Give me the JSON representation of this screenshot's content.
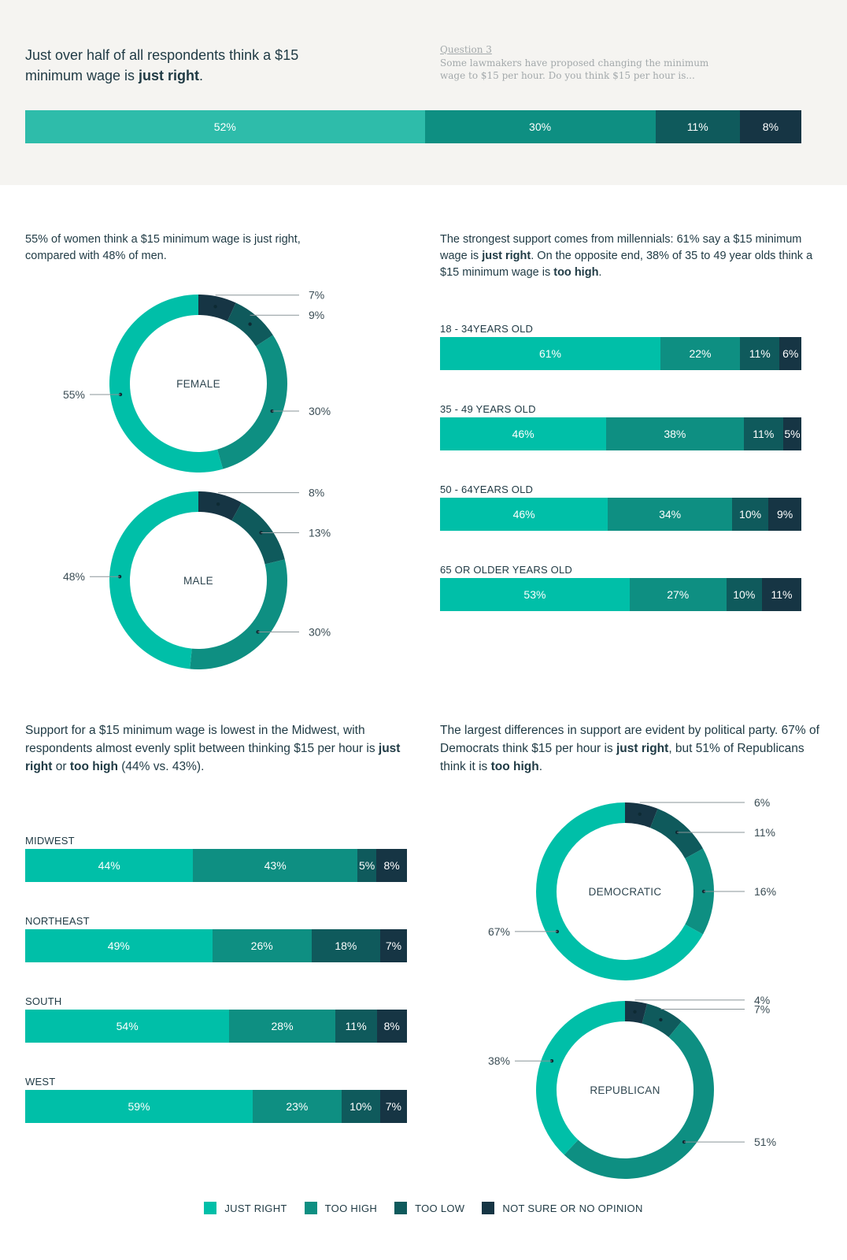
{
  "colors": {
    "just_right": "#00bfa8",
    "too_high": "#0e8f82",
    "too_low": "#0f5a5c",
    "not_sure": "#163544",
    "band_bg": "#f5f4f1",
    "overall_just_right": "#2ebcaa"
  },
  "header": {
    "headline_part1": "Just over half of all respondents think a $15 minimum wage is ",
    "headline_bold": "just right",
    "headline_end": ".",
    "question_label": "Question 3",
    "question_text": "Some lawmakers have proposed changing the minimum wage to $15 per hour. Do you think $15 per hour is..."
  },
  "gender_intro": {
    "text1": "55% of women think a $15 minimum wage is just right, compared with 48% of men."
  },
  "age_intro": {
    "text1": "The strongest support comes from millennials: 61% say a $15 minimum wage is ",
    "bold1": "just right",
    "text2": ". On the opposite end, 38% of 35 to 49 year olds think a $15 minimum wage is ",
    "bold2": "too high",
    "text3": "."
  },
  "region_intro": {
    "text1": "Support for a $15 minimum wage is lowest in the Midwest, with respondents almost evenly split between thinking $15 per hour is ",
    "bold1": "just right",
    "text2": " or ",
    "bold2": "too high",
    "text3": " (44% vs. 43%)."
  },
  "party_intro": {
    "text1": "The largest differences in support are evident by political party. 67% of Democrats think $15 per hour is ",
    "bold1": "just right",
    "text2": ", but 51% of Republicans think it is ",
    "bold2": "too high",
    "text3": "."
  },
  "legend": [
    {
      "label": "JUST RIGHT",
      "key": "just_right"
    },
    {
      "label": "TOO HIGH",
      "key": "too_high"
    },
    {
      "label": "TOO LOW",
      "key": "too_low"
    },
    {
      "label": "NOT SURE OR NO OPINION",
      "key": "not_sure"
    }
  ],
  "chart_data": [
    {
      "id": "overall",
      "type": "bar",
      "stacked": true,
      "orientation": "horizontal",
      "categories": [
        "All respondents"
      ],
      "series": [
        {
          "name": "JUST RIGHT",
          "values": [
            52
          ]
        },
        {
          "name": "TOO HIGH",
          "values": [
            30
          ]
        },
        {
          "name": "TOO LOW",
          "values": [
            11
          ]
        },
        {
          "name": "NOT SURE OR NO OPINION",
          "values": [
            8
          ]
        }
      ],
      "data_labels": [
        [
          "52%",
          "30%",
          "11%",
          "8%"
        ]
      ]
    },
    {
      "id": "gender",
      "type": "pie",
      "donut": true,
      "slice_order": [
        "NOT SURE OR NO OPINION",
        "TOO LOW",
        "TOO HIGH",
        "JUST RIGHT"
      ],
      "charts": [
        {
          "center_label": "FEMALE",
          "values": [
            7,
            9,
            30,
            55
          ],
          "labels": [
            "7%",
            "9%",
            "30%",
            "55%"
          ]
        },
        {
          "center_label": "MALE",
          "values": [
            8,
            13,
            30,
            48
          ],
          "labels": [
            "8%",
            "13%",
            "30%",
            "48%"
          ]
        }
      ]
    },
    {
      "id": "age",
      "type": "bar",
      "stacked": true,
      "orientation": "horizontal",
      "categories": [
        "18 - 34YEARS OLD",
        "35 - 49 YEARS OLD",
        "50 - 64YEARS OLD",
        "65 OR OLDER YEARS OLD"
      ],
      "series": [
        {
          "name": "JUST RIGHT",
          "values": [
            61,
            46,
            46,
            53
          ]
        },
        {
          "name": "TOO HIGH",
          "values": [
            22,
            38,
            34,
            27
          ]
        },
        {
          "name": "TOO LOW",
          "values": [
            11,
            11,
            10,
            10
          ]
        },
        {
          "name": "NOT SURE OR NO OPINION",
          "values": [
            6,
            5,
            9,
            11
          ]
        }
      ],
      "data_labels": [
        [
          "61%",
          "22%",
          "11%",
          "6%"
        ],
        [
          "46%",
          "38%",
          "11%",
          "5%"
        ],
        [
          "46%",
          "34%",
          "10%",
          "9%"
        ],
        [
          "53%",
          "27%",
          "10%",
          "11%"
        ]
      ]
    },
    {
      "id": "region",
      "type": "bar",
      "stacked": true,
      "orientation": "horizontal",
      "categories": [
        "MIDWEST",
        "NORTHEAST",
        "SOUTH",
        "WEST"
      ],
      "series": [
        {
          "name": "JUST RIGHT",
          "values": [
            44,
            49,
            54,
            59
          ]
        },
        {
          "name": "TOO HIGH",
          "values": [
            43,
            26,
            28,
            23
          ]
        },
        {
          "name": "TOO LOW",
          "values": [
            5,
            18,
            11,
            10
          ]
        },
        {
          "name": "NOT SURE OR NO OPINION",
          "values": [
            8,
            7,
            8,
            7
          ]
        }
      ],
      "data_labels": [
        [
          "44%",
          "43%",
          "5%",
          "8%"
        ],
        [
          "49%",
          "26%",
          "18%",
          "7%"
        ],
        [
          "54%",
          "28%",
          "11%",
          "8%"
        ],
        [
          "59%",
          "23%",
          "10%",
          "7%"
        ]
      ]
    },
    {
      "id": "party",
      "type": "pie",
      "donut": true,
      "slice_order": [
        "NOT SURE OR NO OPINION",
        "TOO LOW",
        "TOO HIGH",
        "JUST RIGHT"
      ],
      "charts": [
        {
          "center_label": "DEMOCRATIC",
          "values": [
            6,
            11,
            16,
            67
          ],
          "labels": [
            "6%",
            "11%",
            "16%",
            "67%"
          ]
        },
        {
          "center_label": "REPUBLICAN",
          "values": [
            4,
            7,
            51,
            38
          ],
          "labels": [
            "4%",
            "7%",
            "51%",
            "38%"
          ]
        }
      ]
    }
  ]
}
